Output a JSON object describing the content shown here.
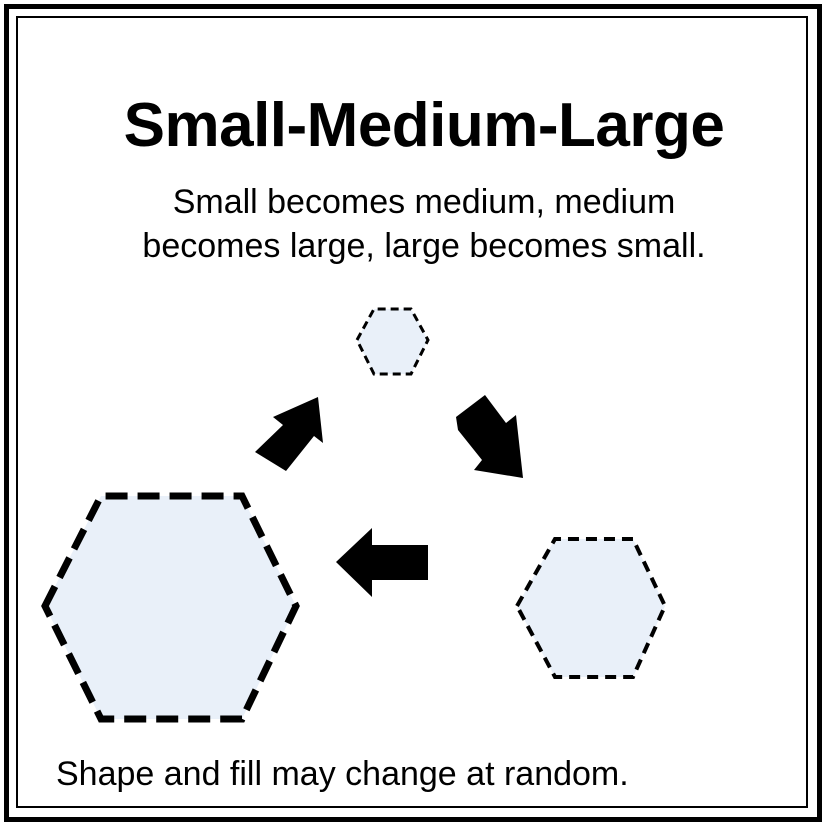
{
  "title": "Small-Medium-Large",
  "subtitle_line1": "Small becomes medium, medium",
  "subtitle_line2": "becomes large, large becomes small.",
  "footer": "Shape and fill may change at random.",
  "colors": {
    "hexagon_fill": "#e9f0f9",
    "stroke": "#000000",
    "background": "#ffffff"
  },
  "shapes": [
    {
      "name": "small-hexagon",
      "size": "small",
      "style": "dashed"
    },
    {
      "name": "medium-hexagon",
      "size": "medium",
      "style": "dashed"
    },
    {
      "name": "large-hexagon",
      "size": "large",
      "style": "dashed"
    }
  ],
  "arrows": [
    {
      "name": "arrow-small-to-medium",
      "direction": "down-right"
    },
    {
      "name": "arrow-medium-to-large",
      "direction": "left"
    },
    {
      "name": "arrow-large-to-small",
      "direction": "up-right"
    }
  ]
}
